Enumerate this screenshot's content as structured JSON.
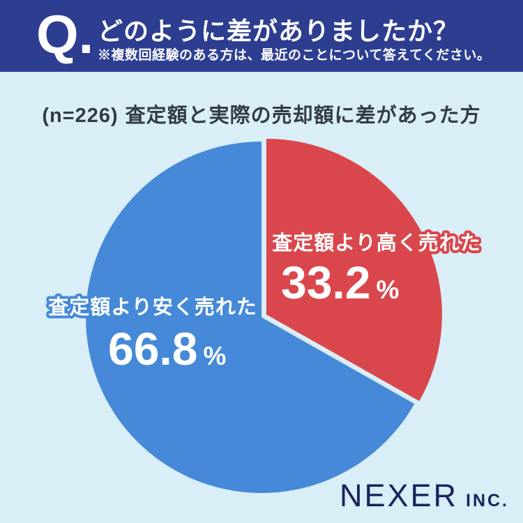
{
  "header": {
    "q_label": "Q.",
    "title": "どのように差がありましたか？",
    "subtitle": "※複数回経験のある方は、最近のことについて答えてください。",
    "bg_color": "#2d3e91",
    "text_color": "#ffffff"
  },
  "subheader": {
    "sample_prefix": "(n=226)",
    "description": "査定額と実際の売却額に差があった方",
    "text_color": "#333b47"
  },
  "chart_data": {
    "type": "pie",
    "title": "どのように差がありましたか？",
    "n": 226,
    "start_angle_deg": 0,
    "direction": "clockwise",
    "percent_sign": "%",
    "value_text_color": "#ffffff",
    "slices": [
      {
        "label": "査定額より高く売れた",
        "value": 33.2,
        "display_value": "33.2",
        "color": "#d9474c",
        "explode": 8
      },
      {
        "label": "査定額より安く売れた",
        "value": 66.8,
        "display_value": "66.8",
        "color": "#4589d8",
        "explode": 0
      }
    ],
    "background_color": "#d9eef6"
  },
  "footer": {
    "brand": "NEXER",
    "brand_suffix": "INC.",
    "brand_color": "#13265c"
  }
}
